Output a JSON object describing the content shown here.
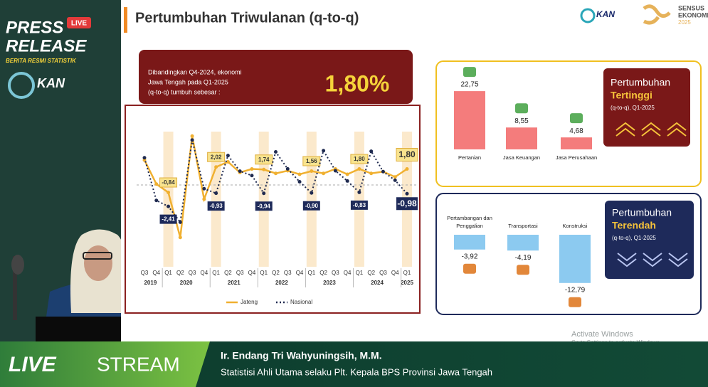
{
  "sidebar": {
    "press": "PRESS",
    "release": "RELEASE",
    "badge": "LIVE",
    "subtitle": "BERITA RESMI STATISTIK",
    "logo": "KAN"
  },
  "slide": {
    "title": "Pertumbuhan Triwulanan (q-to-q)",
    "logos": [
      "KAN",
      "SENSUS",
      "EKONOMI",
      "2025"
    ],
    "callout": {
      "lines": [
        "Dibandingkan Q4-2024, ekonomi",
        "Jawa Tengah pada Q1-2025",
        "(q-to-q) tumbuh sebesar :"
      ],
      "value": 1.8,
      "value_label": "1,80%"
    },
    "line_chart": {
      "type": "line",
      "quarters": [
        "Q3",
        "Q4",
        "Q1",
        "Q2",
        "Q3",
        "Q4",
        "Q1",
        "Q2",
        "Q3",
        "Q4",
        "Q1",
        "Q2",
        "Q3",
        "Q4",
        "Q1",
        "Q2",
        "Q3",
        "Q4",
        "Q1",
        "Q2",
        "Q3",
        "Q4",
        "Q1"
      ],
      "years": [
        "2019",
        "2020",
        "2021",
        "2022",
        "2023",
        "2024",
        "2025"
      ],
      "series": [
        {
          "name": "Jateng",
          "color": "#f0b030",
          "values": [
            2.8,
            0.1,
            -0.84,
            -5.9,
            5.5,
            -1.6,
            2.02,
            2.6,
            1.4,
            1.8,
            1.74,
            1.3,
            1.6,
            1.2,
            1.56,
            1.3,
            1.8,
            1.2,
            1.8,
            1.3,
            1.5,
            0.9,
            1.8
          ],
          "value_labels": [
            null,
            null,
            "-0,84",
            null,
            null,
            null,
            "2,02",
            null,
            null,
            null,
            "1,74",
            null,
            null,
            null,
            "1,56",
            null,
            null,
            null,
            "1,80",
            null,
            null,
            null,
            "1,80"
          ]
        },
        {
          "name": "Nasional",
          "color": "#1f2a50",
          "values": [
            3.06,
            -1.74,
            -2.41,
            -4.19,
            5.05,
            -0.42,
            -0.93,
            3.31,
            1.55,
            1.06,
            -0.94,
            3.72,
            1.81,
            0.36,
            -0.9,
            3.86,
            1.6,
            0.45,
            -0.83,
            3.79,
            1.5,
            0.53,
            -0.98
          ],
          "value_labels": [
            null,
            null,
            "-2,41",
            null,
            null,
            null,
            "-0,93",
            null,
            null,
            null,
            "-0,94",
            null,
            null,
            null,
            "-0,90",
            null,
            null,
            null,
            "-0,83",
            null,
            null,
            null,
            "-0,98"
          ]
        }
      ]
    },
    "top_sectors": {
      "type": "bar",
      "heading": [
        "Pertumbuhan",
        "Tertinggi",
        "(q-to-q), Q1-2025"
      ],
      "categories": [
        [
          "Pertanian"
        ],
        [
          "Jasa Keuangan"
        ],
        [
          "Jasa Perusahaan"
        ]
      ],
      "values": [
        22.75,
        8.55,
        4.68
      ],
      "value_labels": [
        "22,75",
        "8,55",
        "4,68"
      ],
      "color": "#f47c7c"
    },
    "bottom_sectors": {
      "type": "bar",
      "heading": [
        "Pertumbuhan",
        "Terendah",
        "(q-to-q), Q1-2025"
      ],
      "categories": [
        [
          "Pertambangan dan",
          "Penggalian"
        ],
        [
          "Transportasi"
        ],
        [
          "Konstruksi"
        ]
      ],
      "values": [
        -3.92,
        -4.19,
        -12.79
      ],
      "value_labels": [
        "-3,92",
        "-4,19",
        "-12,79"
      ],
      "color": "#8ccaf0"
    }
  },
  "watermark": [
    "Activate Windows",
    "Go to Settings to activate Windows."
  ],
  "banner": {
    "live": "LIVE",
    "stream": "STREAM",
    "name": "Ir. Endang Tri Wahyuningsih, M.M.",
    "role": "Statistisi Ahli Utama selaku Plt. Kepala BPS Provinsi Jawa Tengah"
  }
}
